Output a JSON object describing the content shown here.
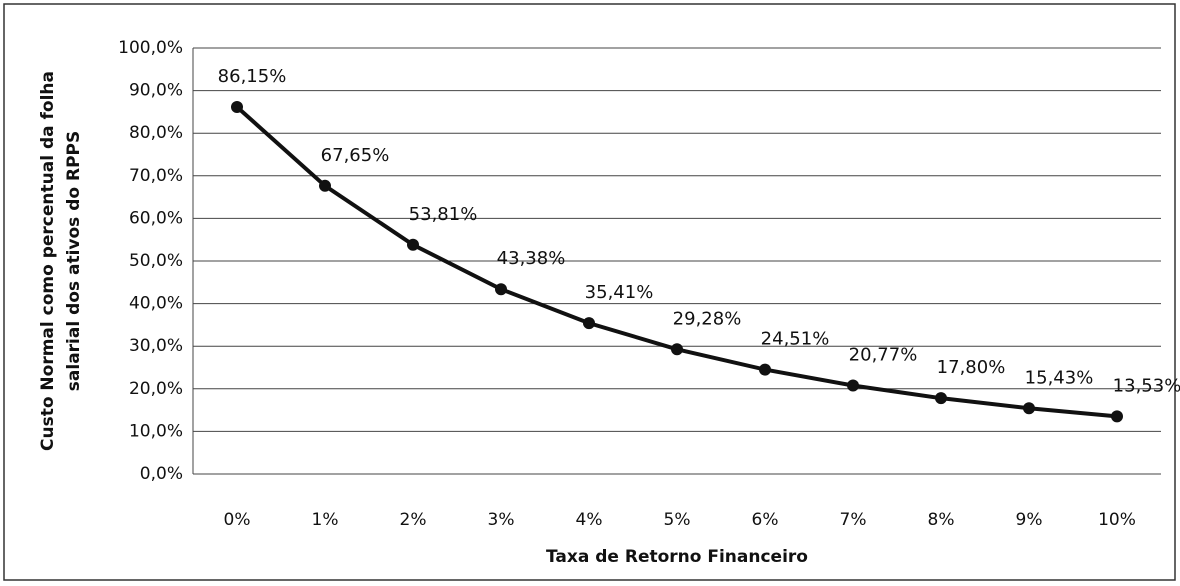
{
  "chart_data": {
    "type": "line",
    "xlabel": "Taxa de Retorno Financeiro",
    "ylabel": [
      "Custo Normal como percentual da folha",
      "salarial dos ativos do RPPS"
    ],
    "categories": [
      "0%",
      "1%",
      "2%",
      "3%",
      "4%",
      "5%",
      "6%",
      "7%",
      "8%",
      "9%",
      "10%"
    ],
    "series": [
      {
        "name": "Custo Normal",
        "color": "#111111",
        "values": [
          86.15,
          67.65,
          53.81,
          43.38,
          35.41,
          29.28,
          24.51,
          20.77,
          17.8,
          15.43,
          13.53
        ],
        "value_labels": [
          "86,15%",
          "67,65%",
          "53,81%",
          "43,38%",
          "35,41%",
          "29,28%",
          "24,51%",
          "20,77%",
          "17,80%",
          "15,43%",
          "13,53%"
        ]
      }
    ],
    "ylim": [
      0,
      100
    ],
    "yticks": [
      {
        "value": 0,
        "label": "0,0%"
      },
      {
        "value": 10,
        "label": "10,0%"
      },
      {
        "value": 20,
        "label": "20,0%"
      },
      {
        "value": 30,
        "label": "30,0%"
      },
      {
        "value": 40,
        "label": "40,0%"
      },
      {
        "value": 50,
        "label": "50,0%"
      },
      {
        "value": 60,
        "label": "60,0%"
      },
      {
        "value": 70,
        "label": "70,0%"
      },
      {
        "value": 80,
        "label": "80,0%"
      },
      {
        "value": 90,
        "label": "90,0%"
      },
      {
        "value": 100,
        "label": "100,0%"
      }
    ],
    "grid": true
  }
}
